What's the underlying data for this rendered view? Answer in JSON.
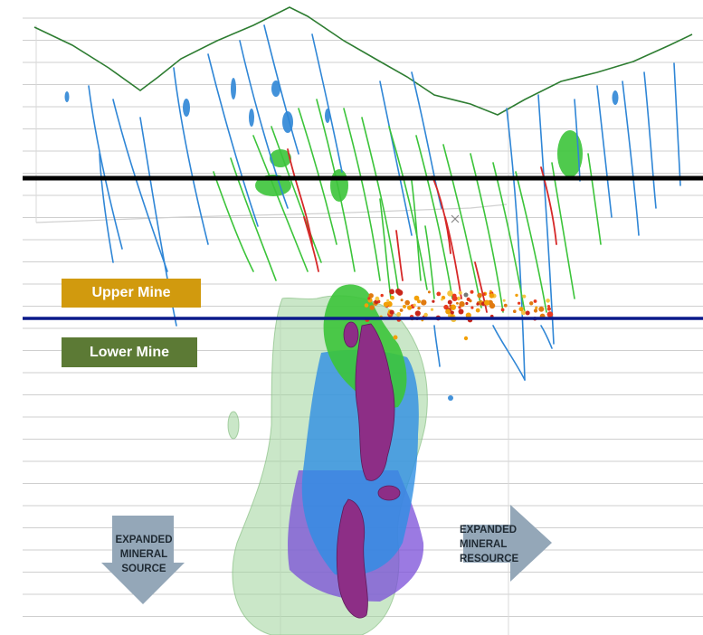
{
  "labels": {
    "upper_mine": "Upper Mine",
    "lower_mine": "Lower Mine"
  },
  "arrows": {
    "source": [
      "EXPANDED",
      "MINERAL",
      "SOURCE"
    ],
    "resource": [
      "EXPANDED",
      "MINERAL",
      "RESOURCE"
    ]
  },
  "colors": {
    "upper_mine": "#d19a0e",
    "lower_mine": "#5c7a35",
    "upper_boundary": "#000000",
    "lower_boundary": "#0a1a8a",
    "topography": "#2e7d32",
    "drill_blue": "#2f86d6",
    "vein_green": "#3cc43a",
    "vein_red": "#d62828",
    "shell_green": "#9fd49a",
    "resource_blue": "#2e8fe3",
    "resource_purple": "#7a4ed8",
    "ore_magenta": "#8d2e86",
    "arrow": "#94a7b8"
  }
}
